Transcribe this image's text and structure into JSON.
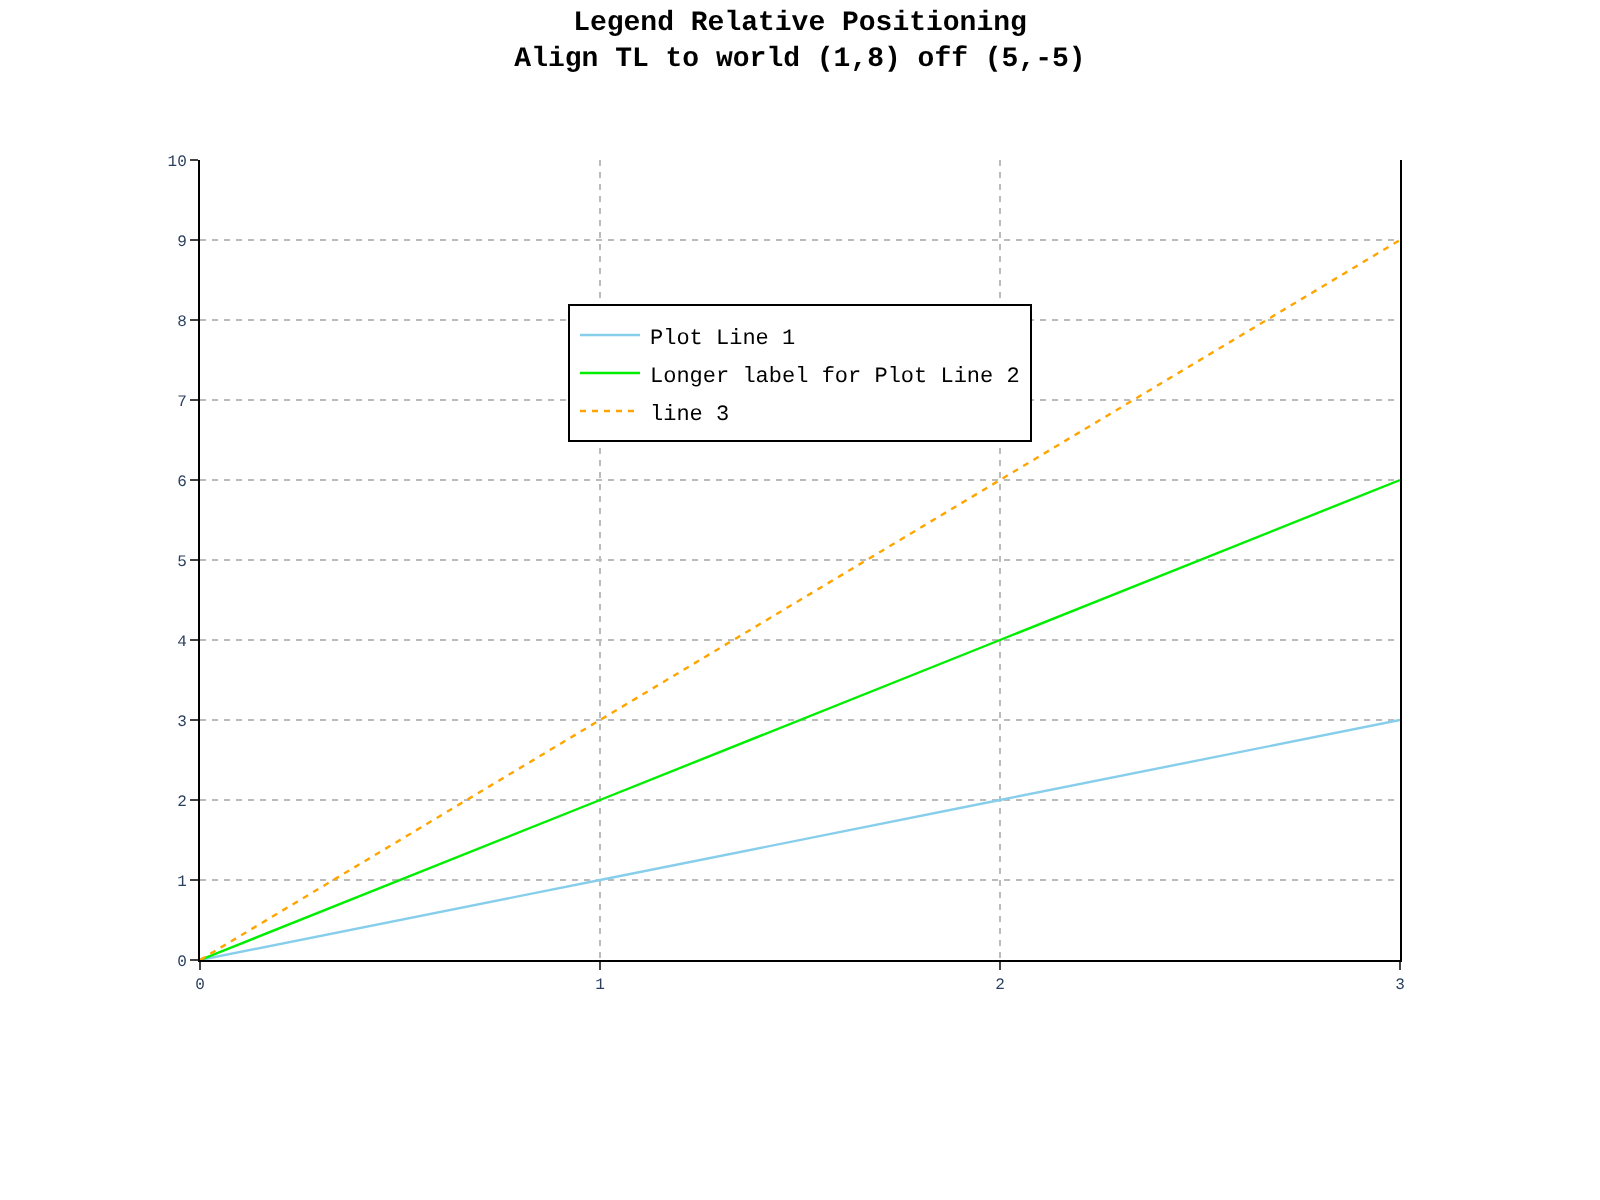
{
  "chart_data": {
    "type": "line",
    "title": "Legend Relative Positioning",
    "subtitle": "Align TL to world (1,8) off (5,-5)",
    "x": [
      0,
      1,
      2,
      3
    ],
    "series": [
      {
        "name": "Plot Line 1",
        "color": "#87ceeb",
        "values": [
          0,
          1,
          2,
          3
        ],
        "line_style": "solid"
      },
      {
        "name": "Longer label for Plot Line 2",
        "color": "#00ee00",
        "values": [
          0,
          2,
          4,
          6
        ],
        "line_style": "solid"
      },
      {
        "name": "line 3",
        "color": "#ffa500",
        "values": [
          0,
          3,
          6,
          9
        ],
        "line_style": "dotted"
      }
    ],
    "xlim": [
      0,
      3
    ],
    "xticks": [
      0,
      1,
      2,
      3
    ],
    "ylim": [
      0,
      10
    ],
    "yticks": [
      0,
      1,
      2,
      3,
      4,
      5,
      6,
      7,
      8,
      9,
      10
    ],
    "grid": true,
    "legend": "top",
    "marker": "none"
  }
}
